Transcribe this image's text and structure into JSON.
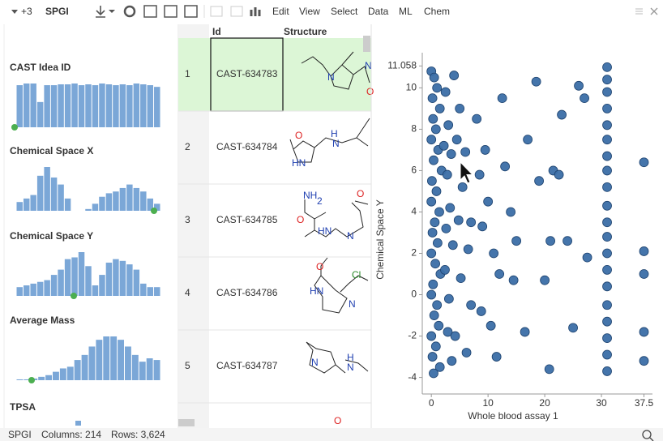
{
  "toolbar": {
    "badge": "+3",
    "table": "SPGI",
    "menus": [
      "Edit",
      "View",
      "Select",
      "Data",
      "ML",
      "Chem"
    ]
  },
  "grid": {
    "headers": [
      "Id",
      "Structure"
    ],
    "rows": [
      [
        1,
        "CAST-634783"
      ],
      [
        2,
        "CAST-634784"
      ],
      [
        3,
        "CAST-634785"
      ],
      [
        4,
        "CAST-634786"
      ],
      [
        5,
        "CAST-634787"
      ]
    ],
    "structure_atoms": [
      [
        "N",
        "N",
        "O"
      ],
      [
        "O",
        "HN",
        "H",
        "N"
      ],
      [
        "NH",
        "2",
        "O",
        "O",
        "HN",
        "N"
      ],
      [
        "O",
        "HN",
        "N",
        "Cl"
      ],
      [
        "N",
        "H",
        "N"
      ],
      [
        "O"
      ]
    ]
  },
  "partial_panel": {
    "title": "TPSA"
  },
  "status": {
    "table": "SPGI",
    "columns": "Columns: 214",
    "rows": "Rows: 3,624"
  },
  "chart_data": [
    {
      "type": "bar",
      "title": "CAST Idea ID",
      "color": "#7ba7d7",
      "values": [
        50,
        52,
        52,
        30,
        50,
        50,
        51,
        51,
        52,
        50,
        51,
        50,
        52,
        51,
        50,
        51,
        50,
        52,
        51,
        50,
        48
      ]
    },
    {
      "type": "bar",
      "title": "Chemical Space X",
      "color": "#7ba7d7",
      "values": [
        10,
        14,
        18,
        40,
        50,
        38,
        30,
        14,
        0,
        0,
        2,
        8,
        16,
        20,
        22,
        26,
        30,
        26,
        22,
        14,
        8
      ]
    },
    {
      "type": "bar",
      "title": "Chemical Space Y",
      "color": "#7ba7d7",
      "values": [
        10,
        12,
        14,
        16,
        18,
        24,
        30,
        42,
        44,
        50,
        34,
        12,
        24,
        38,
        42,
        40,
        36,
        30,
        14,
        10,
        10
      ]
    },
    {
      "type": "bar",
      "title": "Average Mass",
      "color": "#7ba7d7",
      "values": [
        1,
        1,
        2,
        4,
        6,
        10,
        14,
        16,
        24,
        30,
        40,
        48,
        52,
        52,
        48,
        40,
        30,
        22,
        26,
        24
      ]
    },
    {
      "type": "scatter",
      "x_label": "Whole blood assay 1",
      "y_label": "Chemical Space Y",
      "color": "#3b6ea6",
      "grid": false,
      "xlim": [
        -1.6,
        39
      ],
      "xticks": [
        0,
        10,
        20,
        30,
        37.5
      ],
      "ylim": [
        -4.8,
        11.7
      ],
      "yticks": [
        -4,
        -2,
        0,
        2,
        4,
        6,
        8,
        10,
        11.058
      ],
      "x": [
        0,
        0.5,
        1,
        0.2,
        1.5,
        0.3,
        0.8,
        0,
        1.2,
        0.4,
        1.8,
        0.1,
        0.9,
        0,
        1.4,
        0.6,
        0.2,
        1.1,
        0,
        0.7,
        1.6,
        0.3,
        0,
        1,
        0.5,
        1.3,
        0,
        0.8,
        0.2,
        1.5,
        0.4,
        2.5,
        3,
        2.2,
        3.5,
        2.8,
        3.3,
        2.6,
        3.8,
        2.4,
        3.1,
        2.9,
        3.6,
        4,
        5,
        4.5,
        6,
        5.5,
        4.8,
        6.5,
        5.2,
        7,
        4.2,
        6.2,
        8,
        9.5,
        8.5,
        10,
        9,
        11,
        12,
        8.8,
        10.5,
        11.5,
        12.5,
        13,
        14,
        15,
        14.5,
        16.5,
        18.5,
        17,
        19,
        21,
        20,
        21.5,
        23,
        24,
        25,
        26,
        27,
        27.5,
        20.8,
        7,
        22.5,
        31,
        31,
        31,
        31,
        31,
        31,
        31,
        31,
        31,
        31,
        31,
        31,
        31,
        31,
        31,
        31,
        31,
        31,
        31,
        31,
        37.5,
        37.5,
        37.5,
        37.5,
        37.5
      ],
      "y": [
        10.8,
        10.5,
        10,
        9.5,
        9,
        8.5,
        8,
        7.5,
        7,
        6.5,
        6,
        5.5,
        5,
        4.5,
        4,
        3.5,
        3,
        2.5,
        2,
        1.5,
        1,
        0.5,
        0,
        -0.5,
        -1,
        -1.5,
        -2,
        -2.5,
        -3,
        -3.5,
        -3.8,
        9.8,
        8.2,
        7.2,
        6.8,
        5.8,
        4.2,
        3.2,
        2.4,
        1.2,
        -0.2,
        -1.8,
        -3.2,
        10.6,
        9,
        7.5,
        6.9,
        5.2,
        3.6,
        2.2,
        0.8,
        -0.5,
        -2,
        -2.8,
        8.5,
        7,
        5.8,
        4.5,
        3.3,
        2,
        1,
        -0.8,
        -1.5,
        -3,
        9.5,
        6.2,
        4,
        2.6,
        0.7,
        -1.8,
        10.3,
        7.5,
        5.5,
        2.6,
        0.7,
        6,
        8.7,
        2.6,
        -1.6,
        10.1,
        9.5,
        1.8,
        -3.6,
        3.5,
        5.8,
        11,
        10.4,
        9.8,
        9,
        8.2,
        7.5,
        6.7,
        6,
        5.2,
        4.3,
        3.5,
        2.8,
        2,
        1.2,
        0.4,
        -0.5,
        -1.3,
        -2.1,
        -2.9,
        -3.7,
        6.4,
        2.1,
        1,
        -1.8,
        -3.2
      ]
    }
  ]
}
